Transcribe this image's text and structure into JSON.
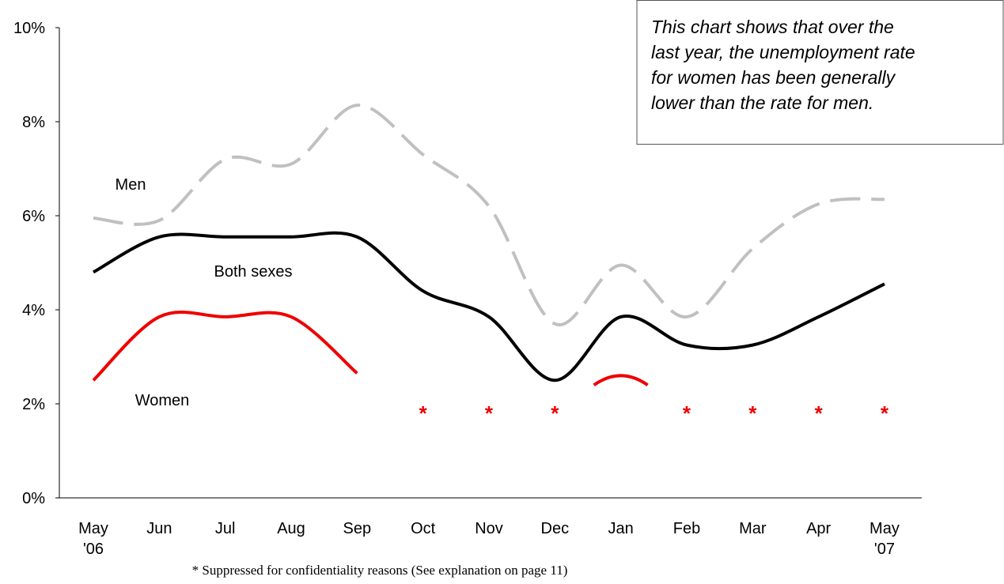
{
  "chart_data": {
    "type": "line",
    "categories": [
      "May '06",
      "Jun",
      "Jul",
      "Aug",
      "Sep",
      "Oct",
      "Nov",
      "Dec",
      "Jan",
      "Feb",
      "Mar",
      "Apr",
      "May '07"
    ],
    "series": [
      {
        "name": "Men",
        "color": "#c0c0c0",
        "dashed": true,
        "values": [
          5.95,
          5.9,
          7.2,
          7.1,
          8.35,
          7.3,
          6.2,
          3.7,
          4.95,
          3.85,
          5.3,
          6.25,
          6.35
        ]
      },
      {
        "name": "Both sexes",
        "color": "#000000",
        "dashed": false,
        "values": [
          4.8,
          5.55,
          5.55,
          5.55,
          5.55,
          4.4,
          3.85,
          2.5,
          3.85,
          3.25,
          3.25,
          3.85,
          4.55
        ]
      },
      {
        "name": "Women",
        "color": "#ee0000",
        "dashed": false,
        "values": [
          2.5,
          3.85,
          3.85,
          3.85,
          2.65,
          null,
          null,
          null,
          2.6,
          null,
          null,
          null,
          null
        ]
      }
    ],
    "ylim": [
      0,
      10
    ],
    "yticks": [
      {
        "value": 0,
        "label": "0%"
      },
      {
        "value": 2,
        "label": "2%"
      },
      {
        "value": 4,
        "label": "4%"
      },
      {
        "value": 6,
        "label": "6%"
      },
      {
        "value": 8,
        "label": "8%"
      },
      {
        "value": 10,
        "label": "10%"
      }
    ],
    "suppressed_marker": "*",
    "annotation": [
      "This chart shows that over the",
      "last year, the unemployment rate",
      "for women has been generally",
      "lower than the rate for men."
    ],
    "footnote": "* Suppressed for confidentiality reasons  (See explanation on page 11)"
  }
}
